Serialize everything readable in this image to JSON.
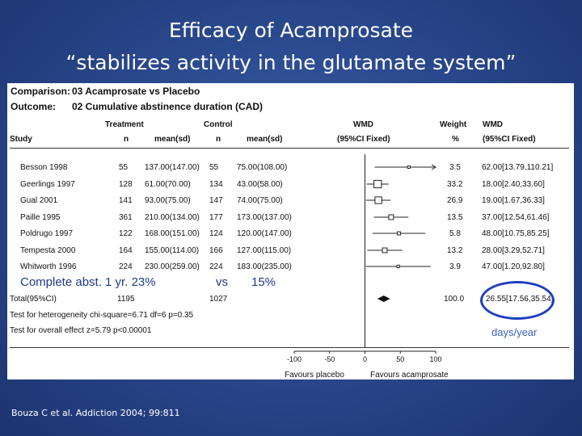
{
  "title_line1": "Efficacy of Acamprosate",
  "title_line2": "“stabilizes activity in the glutamate system”",
  "comparison": {
    "label": "Comparison:",
    "value": "03 Acamprosate vs Placebo"
  },
  "outcome": {
    "label": "Outcome:",
    "value": "02 Cumulative abstinence duration (CAD)"
  },
  "headers": {
    "treatment": "Treatment",
    "control": "Control",
    "study": "Study",
    "n": "n",
    "mean_sd": "mean(sd)",
    "wmd": "WMD",
    "ci_fixed": "(95%CI Fixed)",
    "weight": "Weight",
    "percent": "%",
    "wmd2": "WMD",
    "ci_fixed2": "(95%CI Fixed)"
  },
  "studies": [
    {
      "study": "Besson 1998",
      "tn": "55",
      "tmean": "137.00(147.00)",
      "cn": "55",
      "cmean": "75.00(108.00)",
      "weight": "3.5",
      "wmd_ci": "62.00[13.79,110.21]"
    },
    {
      "study": "Geerlings 1997",
      "tn": "128",
      "tmean": "61.00(70.00)",
      "cn": "134",
      "cmean": "43.00(58.00)",
      "weight": "33.2",
      "wmd_ci": "18.00[2.40,33.60]"
    },
    {
      "study": "Gual 2001",
      "tn": "141",
      "tmean": "93.00(75.00)",
      "cn": "147",
      "cmean": "74.00(75.00)",
      "weight": "26.9",
      "wmd_ci": "19.00[1.67,36.33]"
    },
    {
      "study": "Paille 1995",
      "tn": "361",
      "tmean": "210.00(134.00)",
      "cn": "177",
      "cmean": "173.00(137.00)",
      "weight": "13.5",
      "wmd_ci": "37.00[12.54,61.46]"
    },
    {
      "study": "Poldrugo 1997",
      "tn": "122",
      "tmean": "168.00(151.00)",
      "cn": "124",
      "cmean": "120.00(147.00)",
      "weight": "5.8",
      "wmd_ci": "48.00[10.75,85.25]"
    },
    {
      "study": "Tempesta 2000",
      "tn": "164",
      "tmean": "155.00(114.00)",
      "cn": "166",
      "cmean": "127.00(115.00)",
      "weight": "13.2",
      "wmd_ci": "28.00[3.29,52.71]"
    },
    {
      "study": "Whitworth 1996",
      "tn": "224",
      "tmean": "230.00(259.00)",
      "cn": "224",
      "cmean": "183.00(235.00)",
      "weight": "3.9",
      "wmd_ci": "47.00[1.20,92.80]"
    }
  ],
  "forest": {
    "points": [
      {
        "est": 62,
        "lo": 13.79,
        "hi": 110.21,
        "arrow": true,
        "weight": 3.5
      },
      {
        "est": 18,
        "lo": 2.4,
        "hi": 33.6,
        "weight": 33.2
      },
      {
        "est": 19,
        "lo": 1.67,
        "hi": 36.33,
        "weight": 26.9
      },
      {
        "est": 37,
        "lo": 12.54,
        "hi": 61.46,
        "weight": 13.5
      },
      {
        "est": 48,
        "lo": 10.75,
        "hi": 85.25,
        "weight": 5.8
      },
      {
        "est": 28,
        "lo": 3.29,
        "hi": 52.71,
        "weight": 13.2
      },
      {
        "est": 47,
        "lo": 1.2,
        "hi": 92.8,
        "weight": 3.9
      }
    ],
    "pooled": {
      "est": 26.55,
      "lo": 17.56,
      "hi": 35.54
    },
    "xlim": [
      -100,
      100
    ],
    "ticks": [
      "-100",
      "-50",
      "0",
      "50",
      "100"
    ],
    "tick_values": [
      -100,
      -50,
      0,
      50,
      100
    ],
    "favours_left": "Favours placebo",
    "favours_right": "Favours acamprosate"
  },
  "total": {
    "label": "Total(95%CI)",
    "tn": "1195",
    "cn": "1027",
    "weight": "100.0",
    "wmd_ci": "26.55[17.56,35.54]"
  },
  "heterogeneity": "Test for heterogeneity chi-square=6.71 df=6 p=0.35",
  "overall_effect": "Test for overall effect z=5.79 p<0.00001",
  "overlay": {
    "text1": "Complete abst. 1 yr.   23%",
    "text2": "vs",
    "text3": "15%"
  },
  "days_label": "days/year",
  "citation": "Bouza C et al. Addiction 2004; 99:811"
}
